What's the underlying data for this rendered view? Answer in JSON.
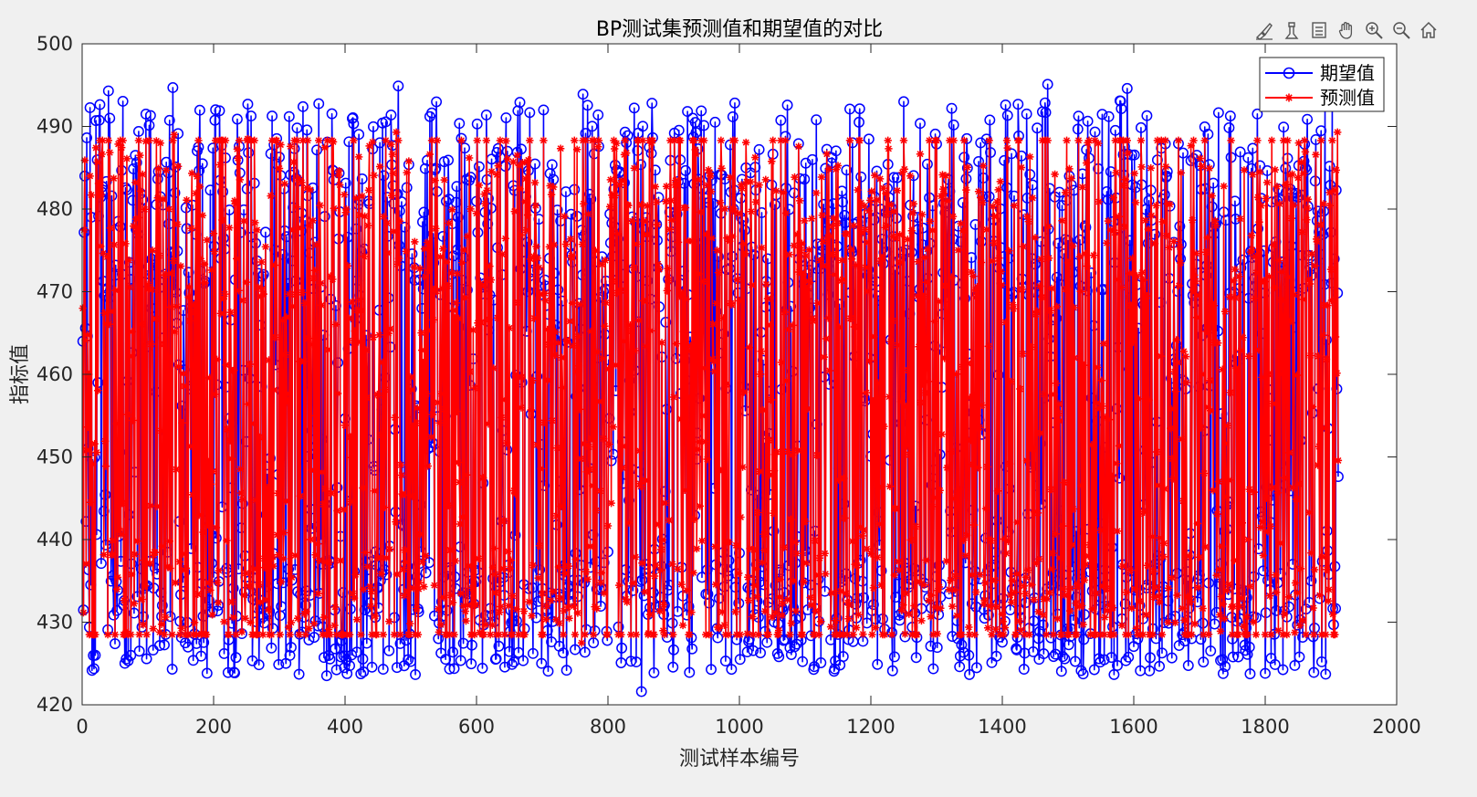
{
  "figure": {
    "background": "#f0f0f0",
    "axes_background": "#ffffff"
  },
  "toolbar": {
    "icons": [
      "brush-icon",
      "datatip-icon",
      "insert-legend-icon",
      "pan-icon",
      "zoom-in-icon",
      "zoom-out-icon",
      "home-icon"
    ]
  },
  "chart_data": {
    "type": "line",
    "title": "BP测试集预测值和期望值的对比",
    "xlabel": "测试样本编号",
    "ylabel": "指标值",
    "xlim": [
      0,
      2000
    ],
    "ylim": [
      420,
      500
    ],
    "xticks": [
      0,
      200,
      400,
      600,
      800,
      1000,
      1200,
      1400,
      1600,
      1800,
      2000
    ],
    "yticks": [
      420,
      430,
      440,
      450,
      460,
      470,
      480,
      490,
      500
    ],
    "grid": false,
    "legend_position": "top-right",
    "n_points": 1911,
    "generator": {
      "seed": 20240611
    },
    "series": [
      {
        "name": "期望值",
        "color": "#0000ff",
        "marker": "o",
        "mean": 451,
        "min": 421.5,
        "max": 495.2,
        "anchors": [
          [
            1,
            464
          ],
          [
            4,
            484
          ],
          [
            40,
            494.3
          ],
          [
            42,
            491
          ],
          [
            97,
            491.5
          ],
          [
            138,
            494.7
          ],
          [
            209,
            491.9
          ],
          [
            315,
            491.2
          ],
          [
            481,
            494.9
          ],
          [
            529,
            491.2
          ],
          [
            762,
            493.9
          ],
          [
            851,
            421.6
          ],
          [
            1117,
            490.8
          ],
          [
            1250,
            493
          ],
          [
            1384,
            425.1
          ],
          [
            1469,
            495.1
          ],
          [
            1590,
            494.6
          ],
          [
            1620,
            491.3
          ],
          [
            1886,
            425.2
          ],
          [
            1912,
            432
          ]
        ]
      },
      {
        "name": "预测值",
        "color": "#ff0000",
        "marker": "*",
        "mean": 451,
        "min": 427.5,
        "max": 489.3,
        "anchors": [
          [
            1,
            468
          ],
          [
            4,
            485.9
          ],
          [
            140,
            489
          ],
          [
            252,
            488.5
          ],
          [
            478,
            489.3
          ],
          [
            760,
            427.5
          ],
          [
            1820,
            429
          ],
          [
            1910,
            489.3
          ],
          [
            1912,
            437
          ]
        ]
      }
    ]
  }
}
